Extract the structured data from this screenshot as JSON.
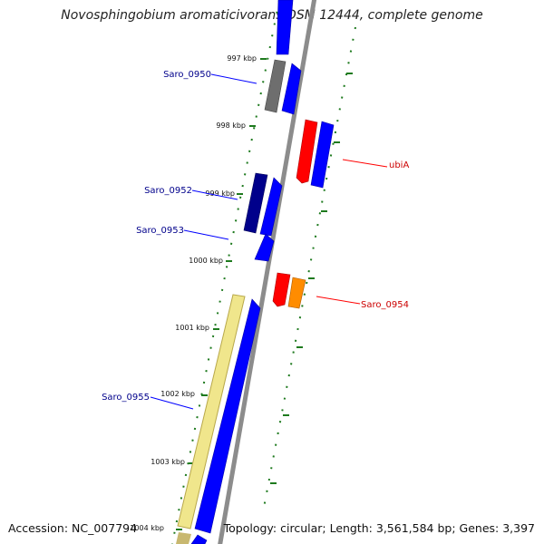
{
  "title": "Novosphingobium aromaticivorans DSM 12444, complete genome",
  "footer": {
    "accession": "Accession: NC_007794",
    "summary": "Topology: circular; Length: 3,561,584 bp; Genes: 3,397"
  },
  "colors": {
    "backbone": "#8c8c8c",
    "ticks": "#1e7a1e",
    "forward_cds": "#0000ff",
    "forward_label": "#00008b",
    "reverse_feature": "#ff0000",
    "reverse_label": "#cc0000",
    "hypothetical_gene": "#f0e68c",
    "navy_gene": "#00008b",
    "gray_gene": "#6e6e6e",
    "orange_gene": "#ff8c00"
  },
  "scale_labels": [
    "997 kbp",
    "998 kbp",
    "999 kbp",
    "1000 kbp",
    "1001 kbp",
    "1002 kbp",
    "1003 kbp",
    "1004 kbp"
  ],
  "gene_labels": {
    "saro_0950": "Saro_0950",
    "saro_0952": "Saro_0952",
    "saro_0953": "Saro_0953",
    "saro_0955": "Saro_0955",
    "ubia": "ubiA",
    "saro_0954": "Saro_0954"
  }
}
